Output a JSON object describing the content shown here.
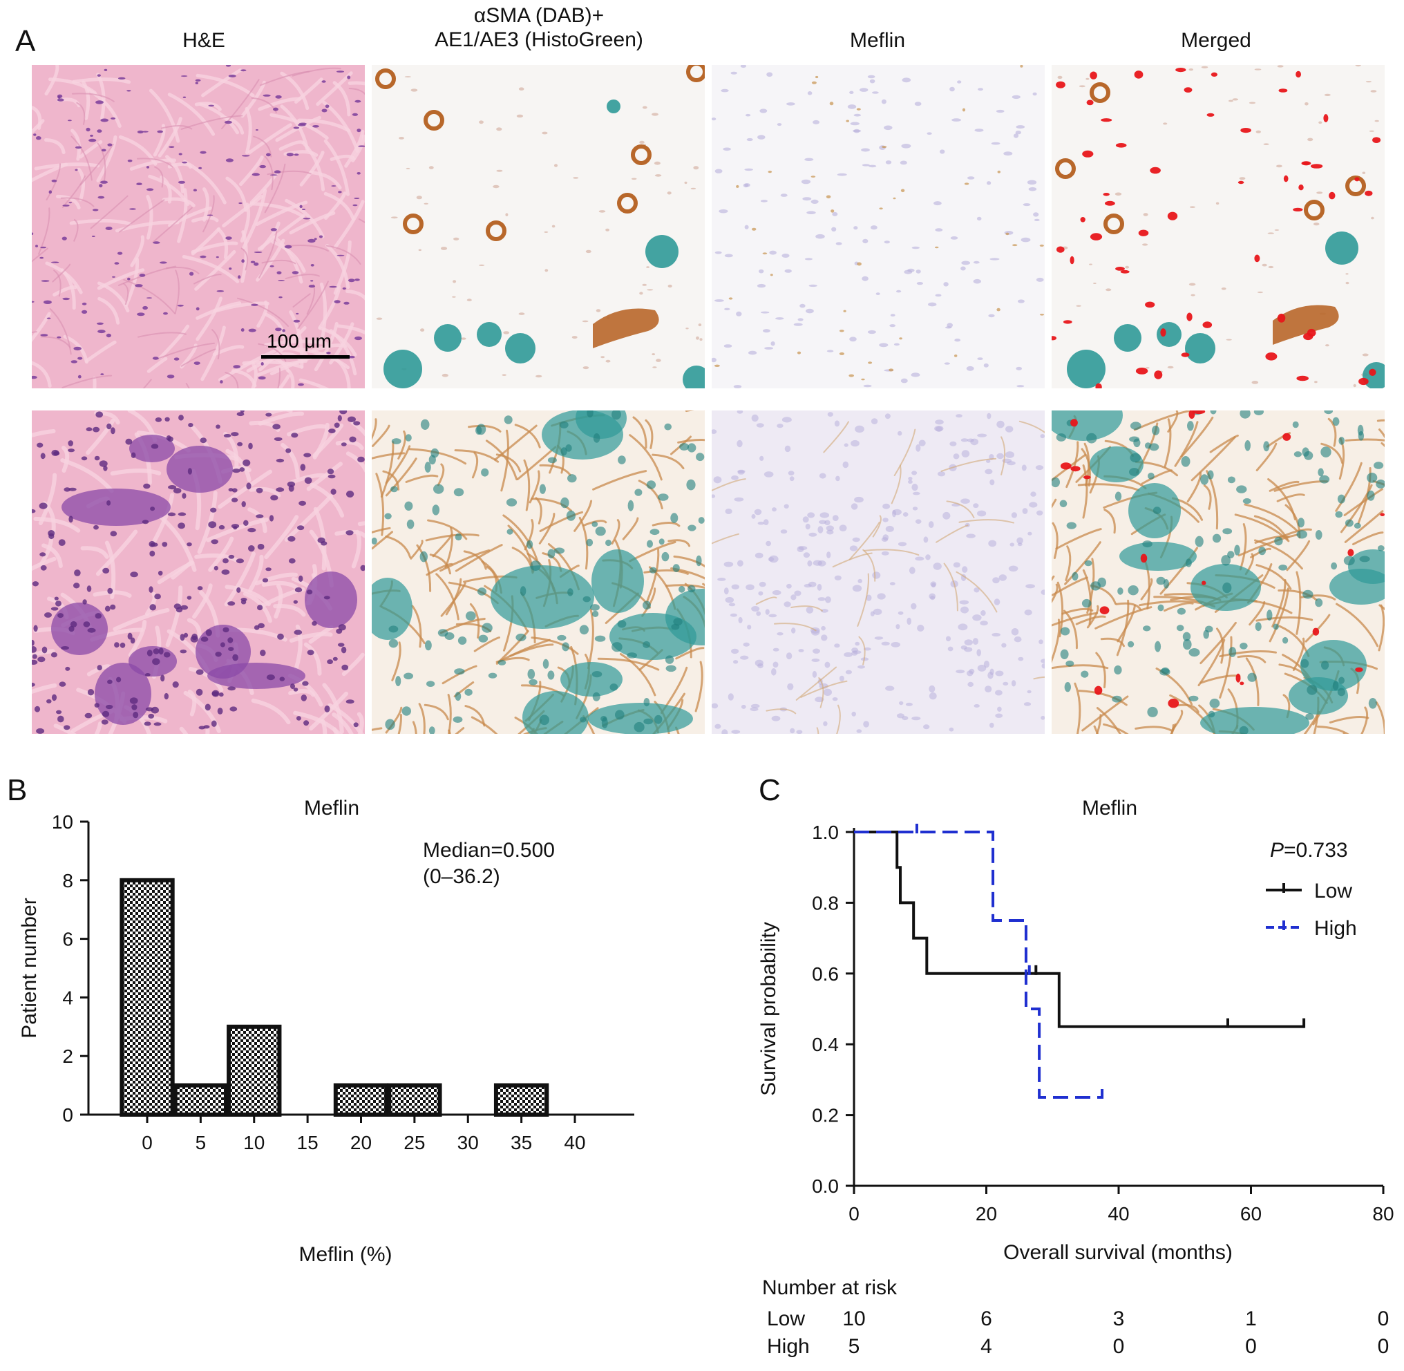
{
  "panels": {
    "A": {
      "letter": "A",
      "columns": [
        "H&E",
        "αSMA (DAB)+\nAE1/AE3 (HistoGreen)",
        "Meflin",
        "Merged"
      ],
      "scale_bar": "100 μm"
    },
    "B": {
      "letter": "B",
      "title": "Meflin",
      "annotation": [
        "Median=0.500",
        "(0–36.2)"
      ]
    },
    "C": {
      "letter": "C",
      "title": "Meflin",
      "pvalue_label": "P",
      "pvalue_value": "=0.733",
      "risk_table": {
        "title": "Number at risk",
        "rows": [
          {
            "label": "Low",
            "values": [
              "10",
              "6",
              "3",
              "1",
              "0"
            ]
          },
          {
            "label": "High",
            "values": [
              "5",
              "4",
              "0",
              "0",
              "0"
            ]
          }
        ]
      }
    }
  },
  "colors": {
    "he_pink": "#efb6cc",
    "he_purple": "#7a3d9a",
    "dab_brown": "#b8672a",
    "histogreen": "#2f9a98",
    "hematoxylin": "#b9b0dc",
    "merged_red": "#e8161a",
    "high_series": "#1f2fd0"
  },
  "chart_data": [
    {
      "type": "bar",
      "title": "Meflin",
      "xlabel": "Meflin (%)",
      "ylabel": "Patient number",
      "categories": [
        0,
        5,
        10,
        15,
        20,
        25,
        30,
        35,
        40
      ],
      "values": [
        8,
        1,
        3,
        0,
        1,
        1,
        0,
        1,
        0
      ],
      "xticks": [
        0,
        5,
        10,
        15,
        20,
        25,
        30,
        35,
        40
      ],
      "yticks": [
        0,
        2,
        4,
        6,
        8,
        10
      ],
      "ylim": [
        0,
        10
      ],
      "pattern": "checkered"
    },
    {
      "type": "line",
      "title": "Meflin",
      "xlabel": "Overall survival (months)",
      "ylabel": "Survival probability",
      "xlim": [
        0,
        80
      ],
      "ylim": [
        0,
        1.0
      ],
      "xticks": [
        "0",
        "20",
        "40",
        "60",
        "80"
      ],
      "yticks": [
        "0.0",
        "0.2",
        "0.4",
        "0.6",
        "0.8",
        "1.0"
      ],
      "legend_position": "top-right",
      "series": [
        {
          "name": "Low",
          "style": "solid",
          "color": "#111111",
          "steps": [
            [
              0,
              1.0
            ],
            [
              6.5,
              0.9
            ],
            [
              7,
              0.8
            ],
            [
              9,
              0.7
            ],
            [
              11,
              0.6
            ],
            [
              31,
              0.45
            ],
            [
              68,
              0.45
            ]
          ],
          "censored": [
            [
              27.5,
              0.6
            ],
            [
              56.5,
              0.45
            ],
            [
              68,
              0.45
            ]
          ]
        },
        {
          "name": "High",
          "style": "dashed",
          "color": "#1f2fd0",
          "steps": [
            [
              0,
              1.0
            ],
            [
              21,
              0.75
            ],
            [
              26,
              0.5
            ],
            [
              28,
              0.25
            ],
            [
              37.5,
              0.25
            ]
          ],
          "censored": [
            [
              9.5,
              1.0
            ],
            [
              26.5,
              0.6
            ],
            [
              37.5,
              0.25
            ]
          ]
        }
      ]
    }
  ]
}
